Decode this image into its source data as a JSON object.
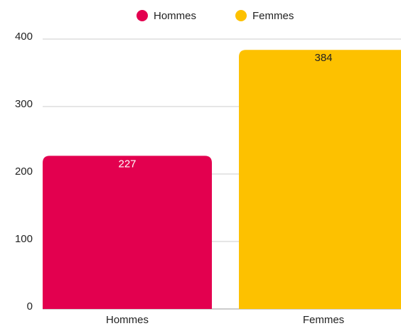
{
  "chart_data": {
    "type": "bar",
    "categories": [
      "Hommes",
      "Femmes"
    ],
    "values": [
      227,
      384
    ],
    "colors": [
      "#e3004f",
      "#fdc100"
    ],
    "value_label_colors": [
      "#ffffff",
      "#222222"
    ],
    "ylim": [
      0,
      400
    ],
    "yticks": [
      0,
      100,
      200,
      300,
      400
    ],
    "grid": true,
    "legend": "top"
  }
}
